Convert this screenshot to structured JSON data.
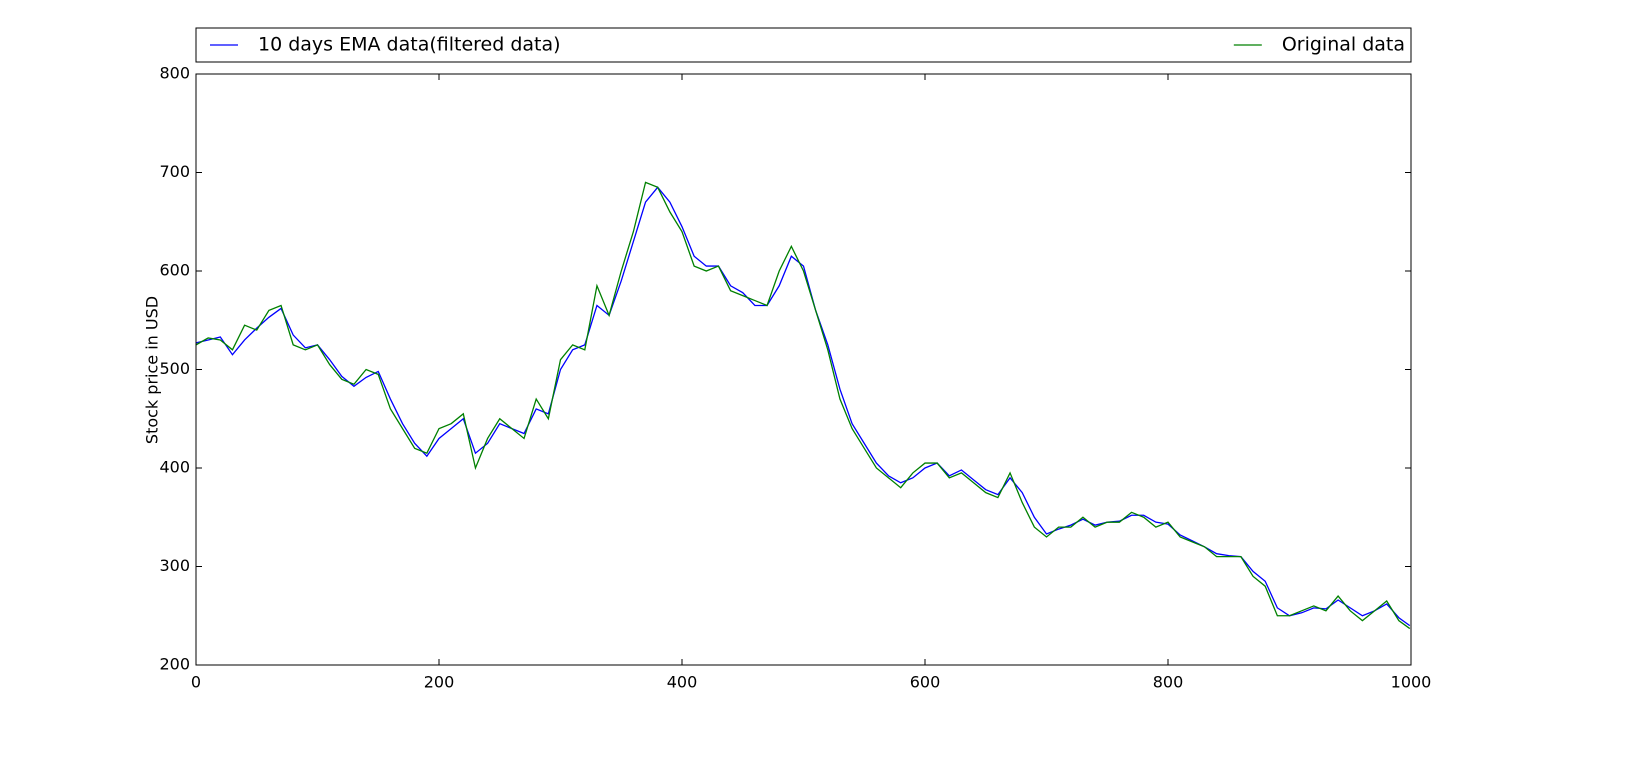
{
  "chart_data": {
    "type": "line",
    "ylabel": "Stock price in USD",
    "x": [
      0,
      10,
      20,
      30,
      40,
      50,
      60,
      70,
      80,
      90,
      100,
      110,
      120,
      130,
      140,
      150,
      160,
      170,
      180,
      190,
      200,
      210,
      220,
      230,
      240,
      250,
      260,
      270,
      280,
      290,
      300,
      310,
      320,
      330,
      340,
      350,
      360,
      370,
      380,
      390,
      400,
      410,
      420,
      430,
      440,
      450,
      460,
      470,
      480,
      490,
      500,
      510,
      520,
      530,
      540,
      550,
      560,
      570,
      580,
      590,
      600,
      610,
      620,
      630,
      640,
      650,
      660,
      670,
      680,
      690,
      700,
      710,
      720,
      730,
      740,
      750,
      760,
      770,
      780,
      790,
      800,
      810,
      820,
      830,
      840,
      850,
      860,
      870,
      880,
      890,
      900,
      910,
      920,
      930,
      940,
      950,
      960,
      970,
      980,
      990,
      999
    ],
    "series": [
      {
        "name": "10 days EMA data(filtered data)",
        "color": "#0000ff",
        "values": [
          527,
          530,
          533,
          515,
          530,
          542,
          553,
          562,
          535,
          522,
          525,
          510,
          493,
          483,
          492,
          498,
          470,
          445,
          425,
          412,
          430,
          440,
          450,
          415,
          425,
          445,
          440,
          435,
          460,
          455,
          500,
          520,
          525,
          565,
          555,
          590,
          630,
          670,
          685,
          670,
          645,
          615,
          605,
          605,
          585,
          578,
          565,
          565,
          585,
          615,
          605,
          560,
          525,
          480,
          445,
          425,
          405,
          392,
          385,
          390,
          400,
          405,
          392,
          398,
          388,
          378,
          373,
          390,
          375,
          350,
          333,
          338,
          342,
          348,
          342,
          345,
          346,
          352,
          352,
          345,
          343,
          332,
          326,
          320,
          313,
          311,
          310,
          295,
          285,
          258,
          250,
          253,
          258,
          257,
          266,
          258,
          250,
          255,
          262,
          248,
          240
        ]
      },
      {
        "name": "Original data",
        "color": "#008000",
        "values": [
          525,
          532,
          530,
          520,
          545,
          540,
          560,
          565,
          525,
          520,
          525,
          505,
          490,
          485,
          500,
          495,
          460,
          440,
          420,
          415,
          440,
          445,
          455,
          400,
          430,
          450,
          440,
          430,
          470,
          450,
          510,
          525,
          520,
          585,
          555,
          600,
          640,
          690,
          685,
          660,
          640,
          605,
          600,
          605,
          580,
          575,
          570,
          565,
          600,
          625,
          600,
          560,
          520,
          470,
          440,
          420,
          400,
          390,
          380,
          395,
          405,
          405,
          390,
          395,
          385,
          375,
          370,
          395,
          365,
          340,
          330,
          340,
          340,
          350,
          340,
          345,
          345,
          355,
          350,
          340,
          345,
          330,
          325,
          320,
          310,
          310,
          310,
          290,
          280,
          250,
          250,
          255,
          260,
          255,
          270,
          255,
          245,
          255,
          265,
          245,
          237
        ]
      }
    ],
    "xlim": [
      0,
      1000
    ],
    "ylim": [
      200,
      800
    ],
    "xticks": [
      0,
      200,
      400,
      600,
      800,
      1000
    ],
    "yticks": [
      200,
      300,
      400,
      500,
      600,
      700,
      800
    ],
    "legend": "top"
  }
}
